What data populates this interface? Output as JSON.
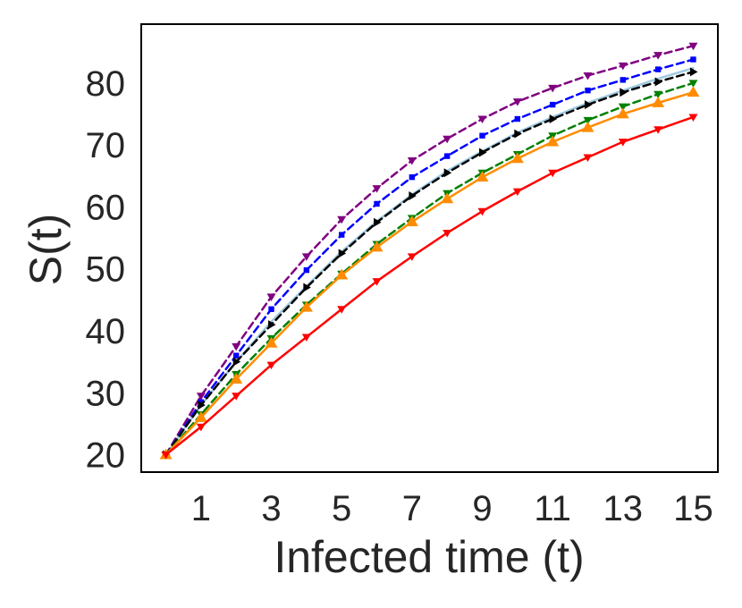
{
  "chart_data": {
    "type": "line",
    "title": "",
    "xlabel": "Infected time (t)",
    "ylabel": "S(t)",
    "xlim": [
      -0.7,
      15.7
    ],
    "ylim": [
      17.2,
      89.5
    ],
    "xticks": [
      1,
      3,
      5,
      7,
      9,
      11,
      13,
      15
    ],
    "yticks": [
      20,
      30,
      40,
      50,
      60,
      70,
      80
    ],
    "grid": false,
    "x": [
      0,
      1,
      2,
      3,
      4,
      5,
      6,
      7,
      8,
      9,
      10,
      11,
      12,
      13,
      14,
      15
    ],
    "series": [
      {
        "name": "purple",
        "color": "#800080",
        "dash": "dashed",
        "marker": "triangle-down",
        "values": [
          20.0,
          29.5,
          37.5,
          45.5,
          52.0,
          58.0,
          63.0,
          67.5,
          71.0,
          74.2,
          77.0,
          79.2,
          81.2,
          82.8,
          84.5,
          86.0
        ]
      },
      {
        "name": "blue",
        "color": "#0000ff",
        "dash": "dashed",
        "marker": "square",
        "values": [
          20.0,
          28.5,
          36.0,
          43.5,
          49.8,
          55.5,
          60.5,
          64.8,
          68.2,
          71.5,
          74.2,
          76.5,
          78.8,
          80.5,
          82.2,
          83.8
        ]
      },
      {
        "name": "light-blue",
        "color": "#9ecae1",
        "dash": "solid",
        "marker": "none",
        "values": [
          20.0,
          28.0,
          35.0,
          41.5,
          47.2,
          52.8,
          57.7,
          62.0,
          65.8,
          69.0,
          72.0,
          74.5,
          76.8,
          78.8,
          80.7,
          82.4
        ]
      },
      {
        "name": "black",
        "color": "#000000",
        "dash": "dashed",
        "marker": "triangle-right",
        "values": [
          20.0,
          28.0,
          35.0,
          41.0,
          47.0,
          52.5,
          57.5,
          61.8,
          65.5,
          68.8,
          71.8,
          74.2,
          76.5,
          78.5,
          80.2,
          81.8
        ]
      },
      {
        "name": "green",
        "color": "#008000",
        "dash": "dashed",
        "marker": "triangle-down",
        "values": [
          20.0,
          26.5,
          33.0,
          38.8,
          44.2,
          49.2,
          54.0,
          58.2,
          62.2,
          65.5,
          68.5,
          71.5,
          74.0,
          76.2,
          78.2,
          80.0
        ]
      },
      {
        "name": "orange",
        "color": "#ff8c00",
        "dash": "solid",
        "marker": "triangle-up",
        "values": [
          20.0,
          26.0,
          32.2,
          38.0,
          43.8,
          49.0,
          53.5,
          57.6,
          61.3,
          64.8,
          67.8,
          70.5,
          72.8,
          75.0,
          76.8,
          78.5
        ]
      },
      {
        "name": "red",
        "color": "#ff0000",
        "dash": "solid",
        "marker": "triangle-down",
        "values": [
          20.0,
          24.5,
          29.5,
          34.5,
          39.0,
          43.5,
          48.0,
          52.0,
          55.8,
          59.3,
          62.5,
          65.5,
          68.0,
          70.5,
          72.5,
          74.5
        ]
      }
    ]
  }
}
